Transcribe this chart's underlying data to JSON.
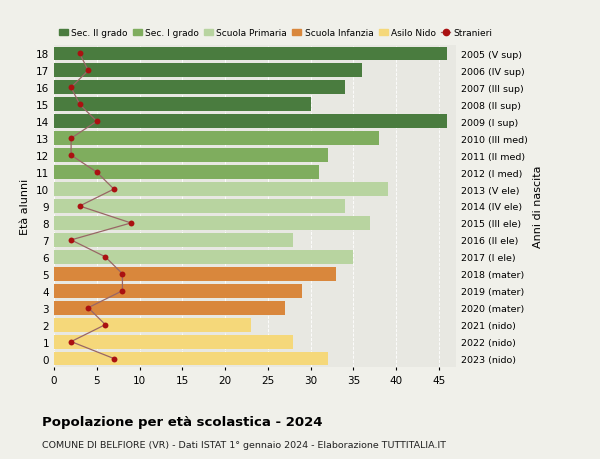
{
  "ages": [
    18,
    17,
    16,
    15,
    14,
    13,
    12,
    11,
    10,
    9,
    8,
    7,
    6,
    5,
    4,
    3,
    2,
    1,
    0
  ],
  "bar_values": [
    46,
    36,
    34,
    30,
    46,
    38,
    32,
    31,
    39,
    34,
    37,
    28,
    35,
    33,
    29,
    27,
    23,
    28,
    32
  ],
  "stranieri": [
    3,
    4,
    2,
    3,
    5,
    2,
    2,
    5,
    7,
    3,
    9,
    2,
    6,
    8,
    8,
    4,
    6,
    2,
    7
  ],
  "right_labels": [
    "2005 (V sup)",
    "2006 (IV sup)",
    "2007 (III sup)",
    "2008 (II sup)",
    "2009 (I sup)",
    "2010 (III med)",
    "2011 (II med)",
    "2012 (I med)",
    "2013 (V ele)",
    "2014 (IV ele)",
    "2015 (III ele)",
    "2016 (II ele)",
    "2017 (I ele)",
    "2018 (mater)",
    "2019 (mater)",
    "2020 (mater)",
    "2021 (nido)",
    "2022 (nido)",
    "2023 (nido)"
  ],
  "bar_colors": [
    "#4a7c3f",
    "#4a7c3f",
    "#4a7c3f",
    "#4a7c3f",
    "#4a7c3f",
    "#7fad5e",
    "#7fad5e",
    "#7fad5e",
    "#b8d4a0",
    "#b8d4a0",
    "#b8d4a0",
    "#b8d4a0",
    "#b8d4a0",
    "#d9873c",
    "#d9873c",
    "#d9873c",
    "#f5d87a",
    "#f5d87a",
    "#f5d87a"
  ],
  "legend_labels": [
    "Sec. II grado",
    "Sec. I grado",
    "Scuola Primaria",
    "Scuola Infanzia",
    "Asilo Nido",
    "Stranieri"
  ],
  "legend_colors": [
    "#4a7c3f",
    "#7fad5e",
    "#b8d4a0",
    "#d9873c",
    "#f5d87a",
    "#a02020"
  ],
  "title": "Popolazione per età scolastica - 2024",
  "subtitle": "COMUNE DI BELFIORE (VR) - Dati ISTAT 1° gennaio 2024 - Elaborazione TUTTITALIA.IT",
  "ylabel_left": "Età alunni",
  "ylabel_right": "Anni di nascita",
  "xlim": [
    0,
    47
  ],
  "background_color": "#f0f0ea",
  "bar_background": "#e8e8e2",
  "stranieri_color": "#aa1111",
  "stranieri_line_color": "#996666"
}
